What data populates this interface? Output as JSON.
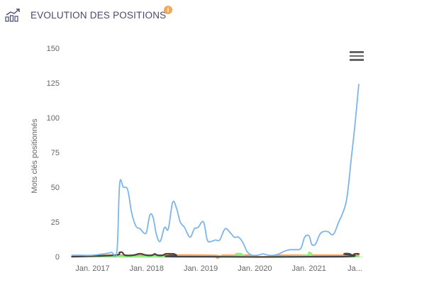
{
  "header": {
    "title": "EVOLUTION DES POSITIONS",
    "icon": "line-chart-icon",
    "info_icon": "info-icon",
    "info_glyph": "i"
  },
  "menu": {
    "icon": "hamburger-menu-icon"
  },
  "colors": {
    "series_main": "#7cb5ec",
    "series_black": "#434348",
    "series_green": "#90ed7d",
    "series_orange": "#f7a35c",
    "info_badge": "#f0a95c"
  },
  "chart_data": {
    "type": "line",
    "title": "",
    "xlabel": "",
    "ylabel": "Mots clés positionnés",
    "ylim": [
      0,
      150
    ],
    "yticks": [
      0,
      25,
      50,
      75,
      100,
      125,
      150
    ],
    "xlim": [
      2016.6,
      2022.0
    ],
    "xticks": [
      {
        "label": "Jan. 2017",
        "value": 2017.0
      },
      {
        "label": "Jan. 2018",
        "value": 2018.0
      },
      {
        "label": "Jan. 2019",
        "value": 2019.0
      },
      {
        "label": "Jan. 2020",
        "value": 2020.0
      },
      {
        "label": "Jan. 2021",
        "value": 2021.0
      },
      {
        "label": "Ja...",
        "value": 2021.85
      }
    ],
    "grid": false,
    "series": [
      {
        "color": "#7cb5ec",
        "x": [
          2016.62,
          2016.8,
          2017.0,
          2017.2,
          2017.35,
          2017.45,
          2017.5,
          2017.57,
          2017.65,
          2017.72,
          2017.8,
          2017.88,
          2017.95,
          2018.0,
          2018.06,
          2018.12,
          2018.18,
          2018.25,
          2018.33,
          2018.4,
          2018.48,
          2018.55,
          2018.62,
          2018.7,
          2018.8,
          2018.88,
          2018.95,
          2019.05,
          2019.12,
          2019.2,
          2019.27,
          2019.35,
          2019.45,
          2019.55,
          2019.62,
          2019.7,
          2019.78,
          2019.85,
          2019.9,
          2019.95,
          2020.05,
          2020.15,
          2020.25,
          2020.35,
          2020.45,
          2020.55,
          2020.65,
          2020.75,
          2020.85,
          2020.92,
          2021.0,
          2021.05,
          2021.12,
          2021.2,
          2021.27,
          2021.35,
          2021.45,
          2021.55,
          2021.62,
          2021.7,
          2021.78,
          2021.85,
          2021.92
        ],
        "values": [
          1,
          1,
          1,
          2,
          3,
          4,
          52,
          50,
          48,
          32,
          22,
          20,
          17,
          18,
          30,
          28,
          16,
          11,
          21,
          20,
          39,
          35,
          25,
          21,
          14,
          20,
          21,
          25,
          12,
          11,
          12,
          12,
          20,
          17,
          14,
          14,
          10,
          4,
          2,
          1,
          1,
          2,
          1,
          1,
          2,
          4,
          5,
          5,
          6,
          14,
          15,
          9,
          9,
          16,
          18,
          18,
          16,
          25,
          31,
          42,
          70,
          95,
          124
        ]
      },
      {
        "color": "#434348",
        "x": [
          2016.62,
          2017.4,
          2017.5,
          2017.55,
          2017.6,
          2017.75,
          2017.85,
          2017.9,
          2018.0,
          2018.1,
          2018.15,
          2018.2,
          2018.3,
          2018.35,
          2018.45,
          2018.5,
          2018.55,
          2018.6,
          2021.6,
          2021.65,
          2021.75,
          2021.8,
          2021.85,
          2021.92
        ],
        "values": [
          0,
          1,
          3,
          3,
          1,
          1,
          2,
          2,
          1,
          1,
          2,
          1,
          1,
          2,
          2,
          2,
          1,
          0,
          0,
          2,
          2,
          1,
          2,
          2
        ]
      },
      {
        "color": "#90ed7d",
        "x": [
          2016.62,
          2019.55,
          2019.65,
          2019.75,
          2019.85,
          2020.5,
          2020.95,
          2021.0,
          2021.05,
          2021.1,
          2021.92
        ],
        "values": [
          0,
          0,
          2,
          2,
          0,
          0,
          1,
          3,
          2,
          0,
          0
        ]
      },
      {
        "color": "#f7a35c",
        "x": [
          2016.62,
          2017.2,
          2017.4,
          2017.5,
          2019.2,
          2019.3,
          2019.4,
          2019.5,
          2019.7,
          2019.9,
          2020.0,
          2020.3,
          2020.5,
          2021.92
        ],
        "values": [
          0,
          1,
          1,
          1,
          1,
          -1,
          1,
          1,
          1,
          1,
          0,
          0,
          1,
          1
        ]
      }
    ]
  }
}
